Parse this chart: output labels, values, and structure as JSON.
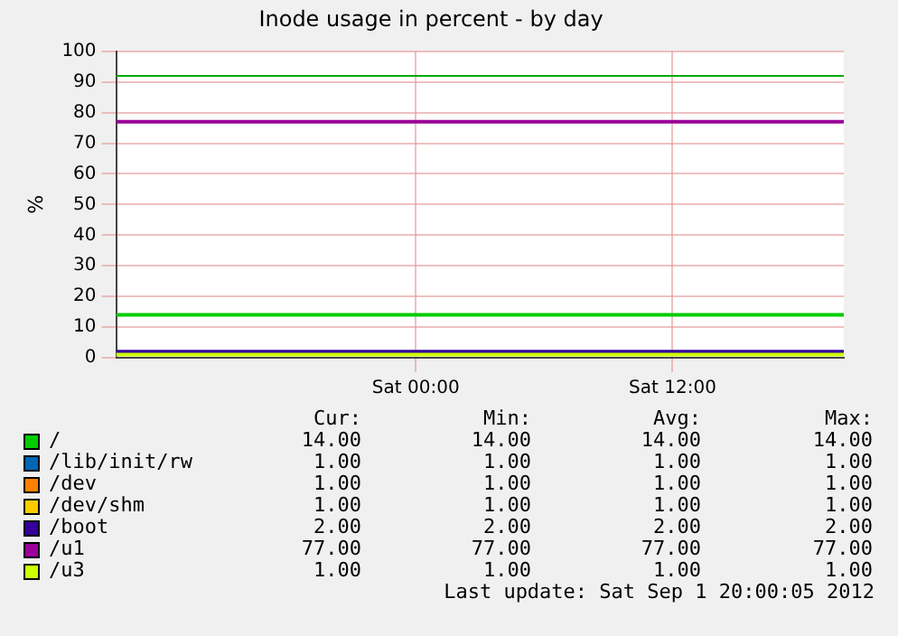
{
  "chart_data": {
    "type": "line",
    "title": "Inode usage in percent - by day",
    "ylabel": "%",
    "xlim": [
      "2012-08-31T10:00",
      "2012-09-01T20:00"
    ],
    "xticks": [
      {
        "value": "2012-09-01T00:00",
        "label": "Sat 00:00"
      },
      {
        "value": "2012-09-01T12:00",
        "label": "Sat 12:00"
      }
    ],
    "ylim": [
      0,
      100
    ],
    "yticks": [
      0,
      10,
      20,
      30,
      40,
      50,
      60,
      70,
      80,
      90,
      100
    ],
    "grid": true,
    "legend": "bottom",
    "marker": "none",
    "line_style": "solid",
    "ref_lines": [
      {
        "axis": "y",
        "value": 92,
        "color": "#00aa00"
      }
    ],
    "annotations": [
      "Cur:",
      "Min:",
      "Avg:",
      "Max:",
      "14.00",
      "14.00",
      "14.00",
      "14.00",
      "1.00",
      "1.00",
      "1.00",
      "1.00",
      "1.00",
      "1.00",
      "1.00",
      "1.00",
      "1.00",
      "1.00",
      "1.00",
      "1.00",
      "2.00",
      "2.00",
      "2.00",
      "2.00",
      "77.00",
      "77.00",
      "77.00",
      "77.00",
      "1.00",
      "1.00",
      "1.00",
      "1.00",
      "Last update:  Sat Sep  1 20:00:05 2012"
    ],
    "series": [
      {
        "name": "/",
        "color": "#00cc00",
        "x": [
          "2012-08-31T10:00",
          "2012-09-01T20:00"
        ],
        "values": [
          14,
          14
        ]
      },
      {
        "name": "/lib/init/rw",
        "color": "#0066b3",
        "values": [
          null,
          null
        ]
      },
      {
        "name": "/dev",
        "color": "#ff8000",
        "values": [
          null,
          null
        ]
      },
      {
        "name": "/dev/shm",
        "color": "#ffcc00",
        "values": [
          null,
          null
        ]
      },
      {
        "name": "/boot",
        "color": "#330099",
        "x": [
          "2012-08-31T10:00",
          "2012-09-01T20:00"
        ],
        "values": [
          2,
          2
        ]
      },
      {
        "name": "/u1",
        "color": "#990099",
        "x": [
          "2012-08-31T10:00",
          "2012-09-01T20:00"
        ],
        "values": [
          77,
          77
        ]
      },
      {
        "name": "/u3",
        "color": "#ccff00",
        "x": [
          "2012-08-31T10:00",
          "2012-09-01T20:00"
        ],
        "values": [
          1,
          1
        ]
      }
    ]
  }
}
